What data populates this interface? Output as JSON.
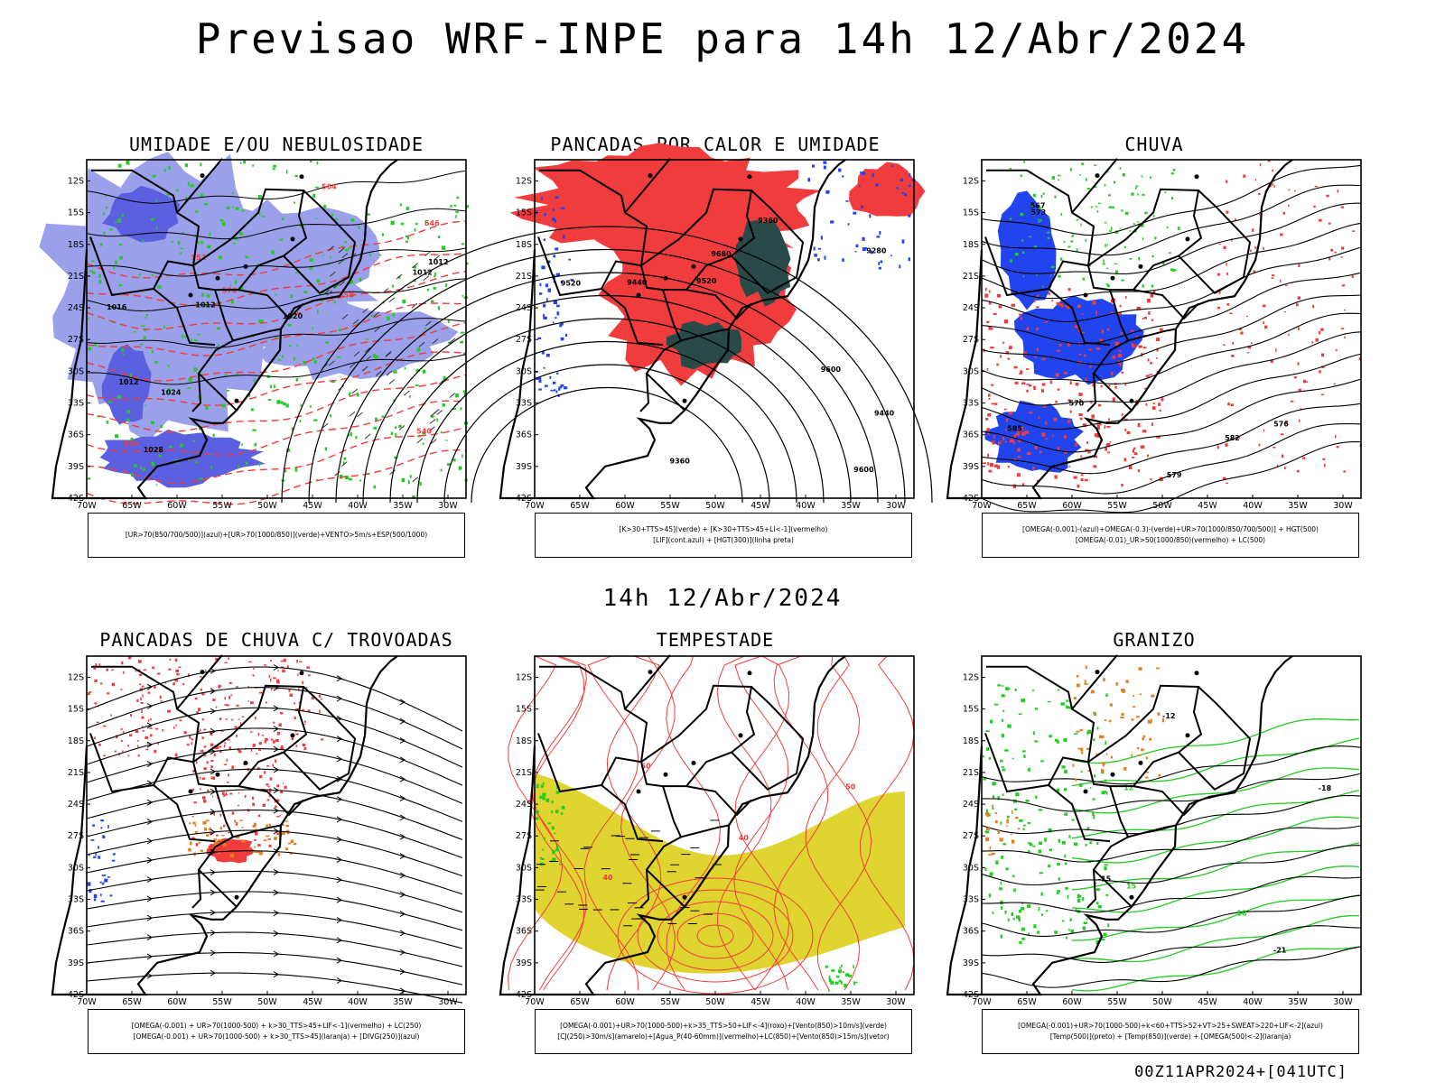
{
  "title": "Previsao WRF-INPE  para 14h 12/Abr/2024",
  "middle_title": "14h 12/Abr/2024",
  "run_info": "00Z11APR2024+[041UTC]",
  "axes": {
    "lat_labels": [
      "12S",
      "15S",
      "18S",
      "21S",
      "24S",
      "27S",
      "30S",
      "33S",
      "36S",
      "39S",
      "42S"
    ],
    "lon_labels": [
      "70W",
      "65W",
      "60W",
      "55W",
      "50W",
      "45W",
      "40W",
      "35W",
      "30W"
    ]
  },
  "colors": {
    "umidade_media": "#9aa0ea",
    "umidade_alta": "#5a60e0",
    "verde": "#22cc22",
    "vermelho": "#f03c3c",
    "azul": "#2244ee",
    "amarelo": "#e0d430",
    "laranja": "#e08020",
    "verde_escuro": "#2a4a4a"
  },
  "panels": [
    {
      "title": "UMIDADE E/OU NEBULOSIDADE",
      "legend": [
        "[UR>70(850/700/500)](azul)+[UR>70(1000/850)](verde)+VENTO>5m/s+ESP(500/1000)"
      ],
      "contour_labels": [
        "1012",
        "1012",
        "1012",
        "1012",
        "1016",
        "1020",
        "1024",
        "1028",
        "576",
        "570",
        "564",
        "558",
        "552",
        "546",
        "540"
      ]
    },
    {
      "title": "PANCADAS POR CALOR E UMIDADE",
      "legend": [
        "[K>30+TTS>45](verde) + [K>30+TTS>45+LI<-1](vermelho)",
        "[LIF](cont.azul) + [HGT(300)](linha preta)"
      ],
      "contour_labels": [
        "9680",
        "9600",
        "9520",
        "9440",
        "9360",
        "9280",
        "9600",
        "9520",
        "9440",
        "9360"
      ]
    },
    {
      "title": "CHUVA",
      "legend": [
        "[OMEGA(-0.001)-(azul)+OMEGA(-0.3)-(verde)+UR>70(1000/850/700/500)] + HGT(500)",
        "[OMEGA(-0.01)_UR>50(1000/850)(vermelho) + LC(500)"
      ],
      "contour_labels": [
        "582",
        "585",
        "579",
        "576",
        "573",
        "570",
        "567"
      ]
    },
    {
      "title": "PANCADAS DE CHUVA C/ TROVOADAS",
      "legend": [
        "[OMEGA(-0.001) + UR>70(1000-500) + k>30_TTS>45+LIF<-1](vermelho) + LC(250)",
        "[OMEGA(-0.001) + UR>70(1000-500) + k>30_TTS>45](laranja) + [DIVG(250)](azul)"
      ],
      "contour_labels": []
    },
    {
      "title": "TEMPESTADE",
      "legend": [
        "[OMEGA(-0.001)+UR>70(1000-500)+k>35_TTS>50+LIF<-4](roxo)+[Vento(850)>10m/s](verde)",
        "[CJ(250)>30m/s](amarelo)+[Agua_P(40-60mm)](vermelho)+LC(850)+[Vento(850)>15m/s](vetor)"
      ],
      "contour_labels": [
        "40",
        "50",
        "40",
        "50"
      ]
    },
    {
      "title": "GRANIZO",
      "legend": [
        "[OMEGA(-0.001)+UR>70(1000-500)+k<60+TTS>52+VT>25+SWEAT>220+LIF<-2](azul)",
        "[Temp(500)](preto) + [Temp(850)](verde) + [OMEGA(500)<-2](laranja)"
      ],
      "contour_labels": [
        "-12",
        "-15",
        "-18",
        "-21",
        "12",
        "15",
        "18"
      ]
    }
  ]
}
